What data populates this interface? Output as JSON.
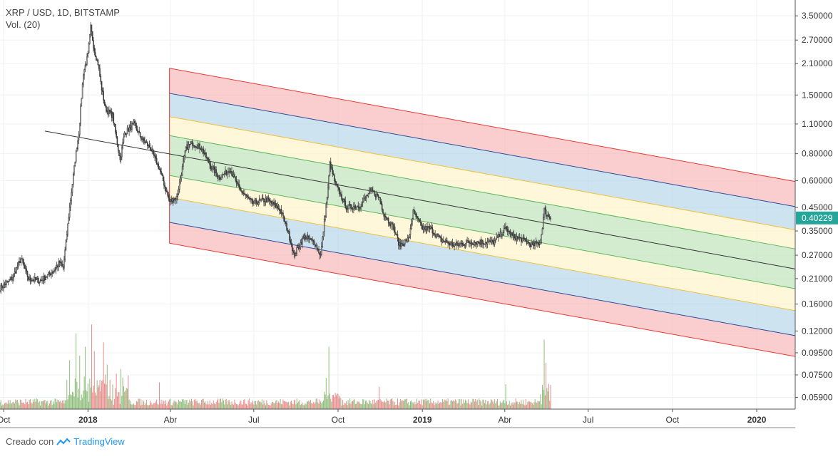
{
  "header": {
    "symbol": "XRP / USD, 1D, BITSTAMP",
    "volume_label": "Vol. (20)"
  },
  "footer": {
    "created_with": "Creado con",
    "brand": "TradingView"
  },
  "colors": {
    "up": "#6aa84f",
    "down": "#e06666",
    "last_price_bg": "#26a69a",
    "grid": "#eef1f4",
    "axis_text": "#333333"
  },
  "chart_data": {
    "type": "candlestick",
    "title": "XRP / USD, 1D, BITSTAMP",
    "scale": "log",
    "y_ticks": [
      3.5,
      2.7,
      2.1,
      1.5,
      1.1,
      0.8,
      0.6,
      0.45,
      0.35,
      0.27,
      0.21,
      0.16,
      0.12,
      0.095,
      0.075,
      0.059
    ],
    "y_tick_labels": [
      "3.50000",
      "2.70000",
      "2.10000",
      "1.50000",
      "1.10000",
      "0.80000",
      "0.60000",
      "0.45000",
      "0.35000",
      "0.27000",
      "0.21000",
      "0.16000",
      "0.12000",
      "0.09500",
      "0.07500",
      "0.05900"
    ],
    "ylim": [
      0.052,
      3.9
    ],
    "x_range": [
      "2017-09-27",
      "2020-02-12"
    ],
    "x_ticks": [
      {
        "date": "2017-10-01",
        "label": "Oct",
        "bold": false
      },
      {
        "date": "2018-01-01",
        "label": "2018",
        "bold": true
      },
      {
        "date": "2018-04-01",
        "label": "Abr",
        "bold": false
      },
      {
        "date": "2018-07-01",
        "label": "Jul",
        "bold": false
      },
      {
        "date": "2018-10-01",
        "label": "Oct",
        "bold": false
      },
      {
        "date": "2019-01-01",
        "label": "2019",
        "bold": true
      },
      {
        "date": "2019-04-01",
        "label": "Abr",
        "bold": false
      },
      {
        "date": "2019-07-01",
        "label": "Jul",
        "bold": false
      },
      {
        "date": "2019-10-01",
        "label": "Oct",
        "bold": false
      },
      {
        "date": "2020-01-01",
        "label": "2020",
        "bold": true
      }
    ],
    "last_price": 0.40229,
    "last_price_label": "0.40229",
    "price_path": [
      [
        "2017-09-27",
        0.19
      ],
      [
        "2017-10-10",
        0.21
      ],
      [
        "2017-10-20",
        0.26
      ],
      [
        "2017-10-28",
        0.21
      ],
      [
        "2017-11-10",
        0.205
      ],
      [
        "2017-11-25",
        0.23
      ],
      [
        "2017-12-01",
        0.25
      ],
      [
        "2017-12-05",
        0.235
      ],
      [
        "2017-12-12",
        0.45
      ],
      [
        "2017-12-18",
        0.75
      ],
      [
        "2017-12-22",
        1.0
      ],
      [
        "2017-12-27",
        1.9
      ],
      [
        "2018-01-01",
        2.3
      ],
      [
        "2018-01-04",
        3.1
      ],
      [
        "2018-01-08",
        2.4
      ],
      [
        "2018-01-12",
        2.1
      ],
      [
        "2018-01-16",
        1.6
      ],
      [
        "2018-01-20",
        1.3
      ],
      [
        "2018-01-28",
        1.2
      ],
      [
        "2018-02-05",
        0.75
      ],
      [
        "2018-02-10",
        1.0
      ],
      [
        "2018-02-20",
        1.1
      ],
      [
        "2018-02-28",
        0.95
      ],
      [
        "2018-03-10",
        0.85
      ],
      [
        "2018-03-20",
        0.68
      ],
      [
        "2018-03-31",
        0.48
      ],
      [
        "2018-04-08",
        0.5
      ],
      [
        "2018-04-18",
        0.85
      ],
      [
        "2018-04-25",
        0.9
      ],
      [
        "2018-05-05",
        0.85
      ],
      [
        "2018-05-15",
        0.7
      ],
      [
        "2018-05-25",
        0.62
      ],
      [
        "2018-06-05",
        0.68
      ],
      [
        "2018-06-15",
        0.55
      ],
      [
        "2018-06-30",
        0.47
      ],
      [
        "2018-07-15",
        0.49
      ],
      [
        "2018-07-30",
        0.44
      ],
      [
        "2018-08-08",
        0.34
      ],
      [
        "2018-08-14",
        0.27
      ],
      [
        "2018-08-25",
        0.33
      ],
      [
        "2018-09-05",
        0.31
      ],
      [
        "2018-09-12",
        0.27
      ],
      [
        "2018-09-20",
        0.55
      ],
      [
        "2018-09-22",
        0.72
      ],
      [
        "2018-09-28",
        0.58
      ],
      [
        "2018-10-10",
        0.45
      ],
      [
        "2018-10-25",
        0.46
      ],
      [
        "2018-11-06",
        0.54
      ],
      [
        "2018-11-15",
        0.5
      ],
      [
        "2018-11-20",
        0.42
      ],
      [
        "2018-12-01",
        0.36
      ],
      [
        "2018-12-07",
        0.3
      ],
      [
        "2018-12-17",
        0.32
      ],
      [
        "2018-12-22",
        0.43
      ],
      [
        "2019-01-01",
        0.36
      ],
      [
        "2019-01-10",
        0.36
      ],
      [
        "2019-01-20",
        0.32
      ],
      [
        "2019-02-05",
        0.3
      ],
      [
        "2019-02-20",
        0.31
      ],
      [
        "2019-03-05",
        0.31
      ],
      [
        "2019-03-20",
        0.31
      ],
      [
        "2019-04-02",
        0.36
      ],
      [
        "2019-04-10",
        0.33
      ],
      [
        "2019-04-20",
        0.32
      ],
      [
        "2019-05-01",
        0.3
      ],
      [
        "2019-05-10",
        0.31
      ],
      [
        "2019-05-14",
        0.44
      ],
      [
        "2019-05-16",
        0.42
      ],
      [
        "2019-05-21",
        0.40229
      ]
    ],
    "volume_spikes": [
      [
        "2017-12-12",
        0.55
      ],
      [
        "2017-12-19",
        0.85
      ],
      [
        "2017-12-23",
        0.6
      ],
      [
        "2017-12-29",
        0.7
      ],
      [
        "2018-01-05",
        0.95
      ],
      [
        "2018-01-08",
        0.65
      ],
      [
        "2018-01-18",
        0.75
      ],
      [
        "2018-01-22",
        0.5
      ],
      [
        "2018-02-06",
        0.45
      ],
      [
        "2018-03-20",
        0.3
      ],
      [
        "2018-09-21",
        0.7
      ],
      [
        "2018-09-18",
        0.35
      ],
      [
        "2018-11-15",
        0.25
      ],
      [
        "2019-04-02",
        0.28
      ],
      [
        "2019-05-14",
        0.78
      ],
      [
        "2019-05-16",
        0.52
      ]
    ],
    "channel": {
      "start_date": "2018-03-31",
      "end_date": "2020-02-12",
      "start_center": 0.783,
      "end_center": 0.233,
      "band_levels": [
        {
          "name": "outer",
          "upper_mult": 2.55,
          "lower_mult": 0.392,
          "fill": "#f8b4b4",
          "line": "#e53935"
        },
        {
          "name": "mid",
          "upper_mult": 1.95,
          "lower_mult": 0.49,
          "fill": "#b3d4e8",
          "line": "#2a4a9a"
        },
        {
          "name": "inner",
          "upper_mult": 1.52,
          "lower_mult": 0.64,
          "fill": "#fff3c4",
          "line": "#f0c040"
        },
        {
          "name": "core",
          "upper_mult": 1.24,
          "lower_mult": 0.81,
          "fill": "#c4e6c0",
          "line": "#5cb85c"
        }
      ],
      "midline_color": "#333333",
      "midline_start_date": "2017-11-15",
      "midline_start_value": 1.02
    }
  }
}
